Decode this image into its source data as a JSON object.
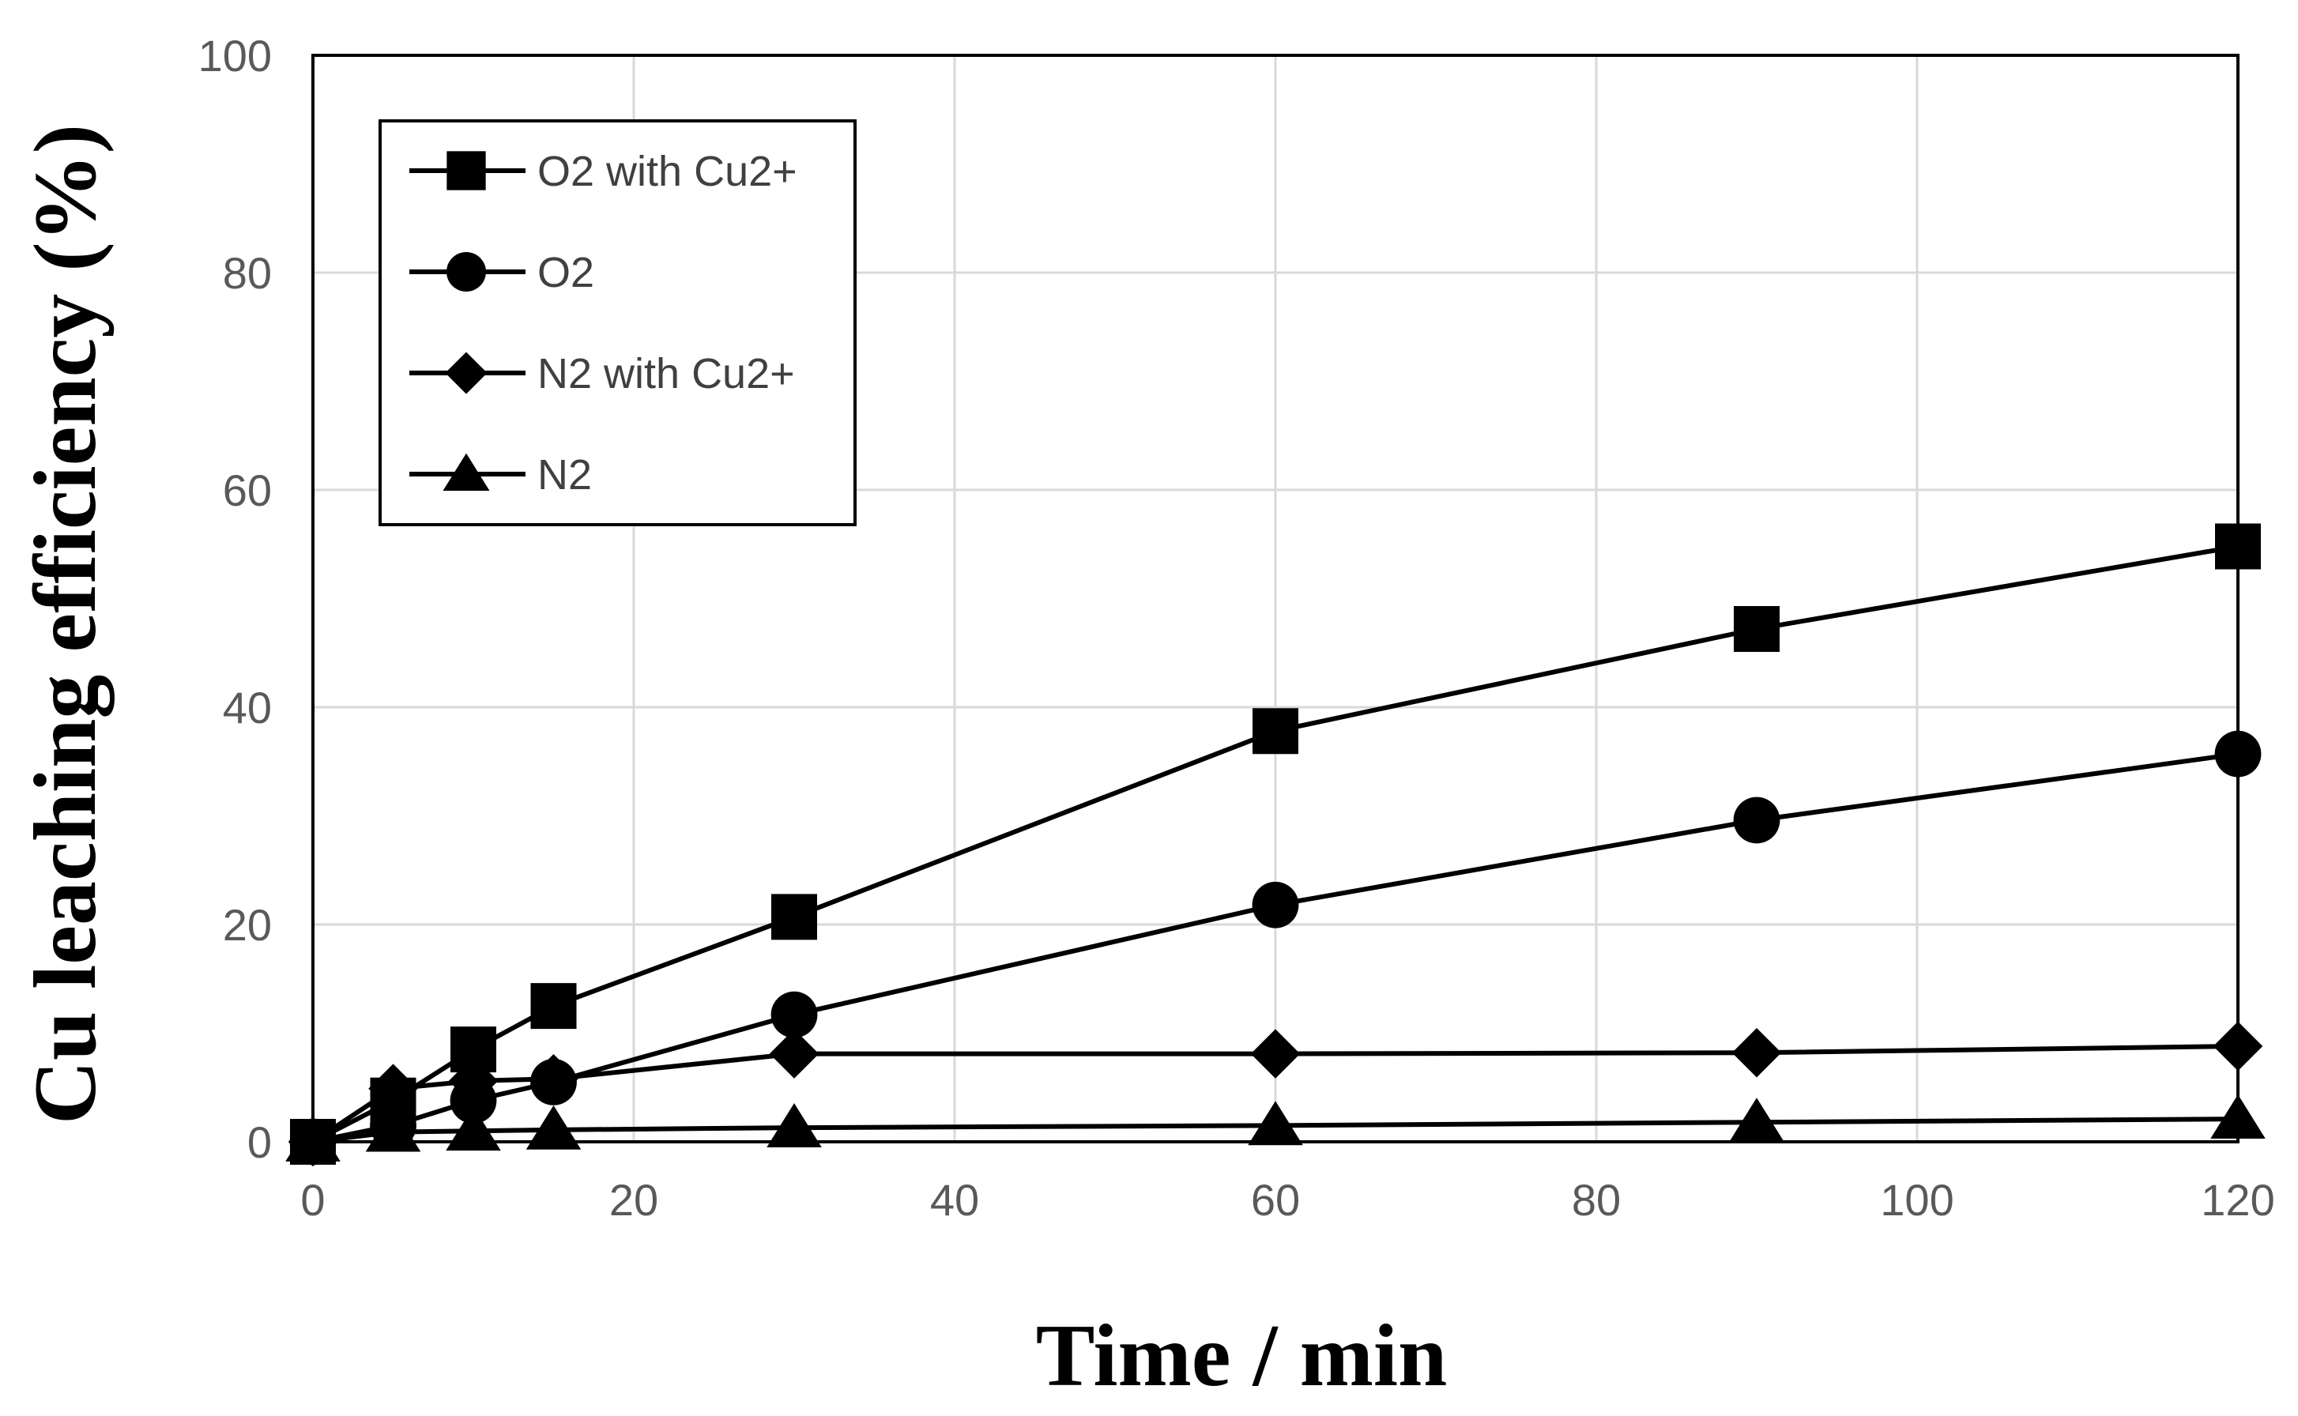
{
  "chart_data": {
    "type": "line",
    "xlabel": "Time / min",
    "ylabel": "Cu leaching efficiency (%)",
    "xlim": [
      0,
      120
    ],
    "ylim": [
      0,
      100
    ],
    "x_ticks": [
      0,
      20,
      40,
      60,
      80,
      100,
      120
    ],
    "y_ticks": [
      0,
      20,
      40,
      60,
      80,
      100
    ],
    "grid": true,
    "legend_position": "top-left",
    "x": [
      0,
      5,
      10,
      15,
      30,
      60,
      90,
      120
    ],
    "series": [
      {
        "name": "O2 with Cu2+",
        "marker": "square",
        "color": "#000000",
        "values": [
          0,
          3.8,
          8.5,
          12.5,
          20.7,
          37.8,
          47.2,
          54.8
        ]
      },
      {
        "name": "O2",
        "marker": "circle",
        "color": "#000000",
        "values": [
          0,
          1.5,
          3.8,
          5.5,
          11.7,
          21.8,
          29.6,
          35.7
        ]
      },
      {
        "name": "N2 with Cu2+",
        "marker": "diamond",
        "color": "#000000",
        "values": [
          0,
          4.9,
          5.6,
          5.8,
          8.1,
          8.1,
          8.2,
          8.8
        ]
      },
      {
        "name": "N2",
        "marker": "triangle",
        "color": "#000000",
        "values": [
          0,
          0.9,
          1.0,
          1.1,
          1.3,
          1.5,
          1.8,
          2.1
        ]
      }
    ],
    "colors": {
      "grid": "#d9d9d9",
      "frame": "#000000",
      "tick_text": "#595959",
      "legend_text": "#404040"
    }
  }
}
